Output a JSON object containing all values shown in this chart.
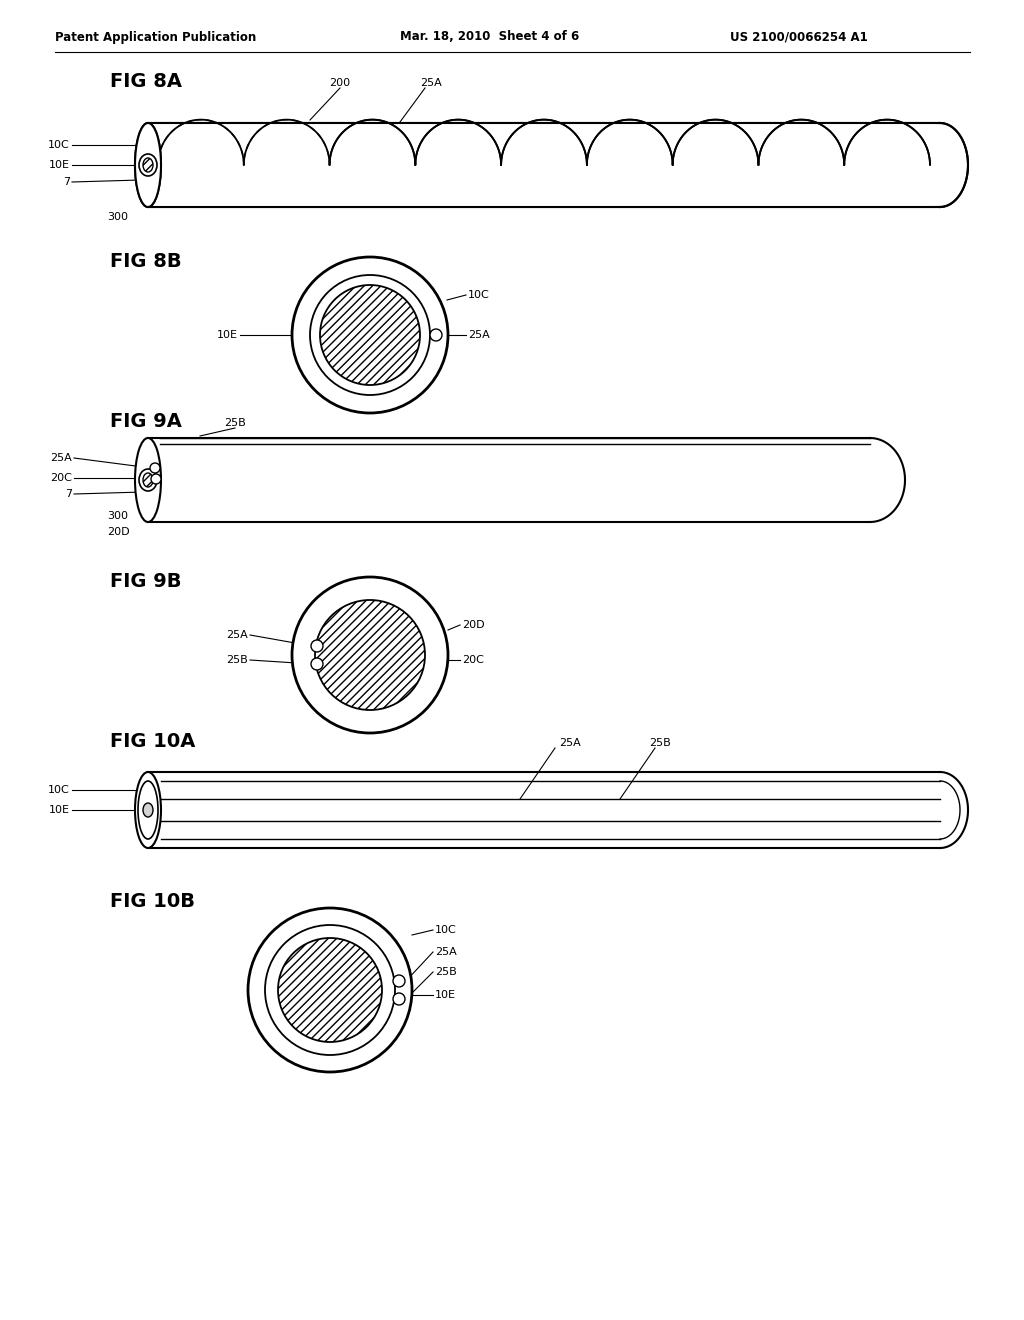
{
  "bg_color": "#ffffff",
  "header_left": "Patent Application Publication",
  "header_mid": "Mar. 18, 2010  Sheet 4 of 6",
  "header_right": "US 2100/0066254 A1",
  "fig8a_label": "FIG 8A",
  "fig8b_label": "FIG 8B",
  "fig9a_label": "FIG 9A",
  "fig9b_label": "FIG 9B",
  "fig10a_label": "FIG 10A",
  "fig10b_label": "FIG 10B"
}
